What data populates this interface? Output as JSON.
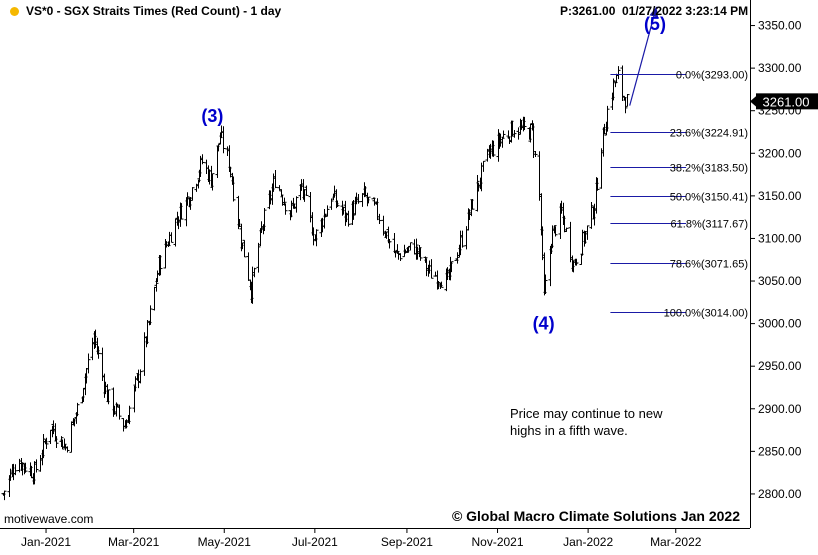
{
  "header": {
    "symbol_title": "VS*0 - SGX Straits Times (Red Count) - 1 day",
    "price_readout": "P:3261.00",
    "timestamp": "01/27/2022 3:23:14 PM",
    "status_dot_color": "#f5b800"
  },
  "watermark": "motivewave.com",
  "copyright": "© Global Macro Climate Solutions Jan 2022",
  "annotation": {
    "line1": "Price may continue to new",
    "line2": "highs in a fifth wave."
  },
  "current_price_badge": "3261.00",
  "colors": {
    "bars": "#000000",
    "wave_labels": "#0000cc",
    "fib_lines": "#1a1aa6",
    "arrow": "#1a1aa6",
    "badge_bg": "#000000",
    "badge_text": "#ffffff"
  },
  "chart_data": {
    "type": "ohlc",
    "ylim": [
      2760,
      3380
    ],
    "y_ticks": [
      2800,
      2850,
      2900,
      2950,
      3000,
      3050,
      3100,
      3150,
      3200,
      3250,
      3300,
      3350
    ],
    "y_tick_labels": [
      "2800.00",
      "2850.00",
      "2900.00",
      "2950.00",
      "3000.00",
      "3050.00",
      "3100.00",
      "3150.00",
      "3200.00",
      "3250.00",
      "3300.00",
      "3350.00"
    ],
    "x_tick_labels": [
      "Jan-2021",
      "Mar-2021",
      "May-2021",
      "Jul-2021",
      "Sep-2021",
      "Nov-2021",
      "Jan-2022",
      "Mar-2022"
    ],
    "x_tick_dates": [
      "2021-01-01",
      "2021-03-01",
      "2021-05-01",
      "2021-07-01",
      "2021-09-01",
      "2021-11-01",
      "2022-01-01",
      "2022-03-01"
    ],
    "x_range": [
      "2020-12-01",
      "2022-04-20"
    ],
    "price_path": [
      [
        "2020-12-03",
        2800
      ],
      [
        "2020-12-12",
        2840
      ],
      [
        "2020-12-24",
        2825
      ],
      [
        "2021-01-04",
        2880
      ],
      [
        "2021-01-14",
        2855
      ],
      [
        "2021-01-22",
        2900
      ],
      [
        "2021-02-02",
        2985
      ],
      [
        "2021-02-11",
        2915
      ],
      [
        "2021-02-23",
        2880
      ],
      [
        "2021-03-04",
        2940
      ],
      [
        "2021-03-11",
        3000
      ],
      [
        "2021-03-18",
        3070
      ],
      [
        "2021-03-29",
        3120
      ],
      [
        "2021-04-07",
        3150
      ],
      [
        "2021-04-16",
        3190
      ],
      [
        "2021-04-22",
        3170
      ],
      [
        "2021-04-28",
        3220
      ],
      [
        "2021-05-04",
        3190
      ],
      [
        "2021-05-12",
        3100
      ],
      [
        "2021-05-19",
        3040
      ],
      [
        "2021-05-26",
        3110
      ],
      [
        "2021-06-04",
        3170
      ],
      [
        "2021-06-14",
        3130
      ],
      [
        "2021-06-22",
        3160
      ],
      [
        "2021-07-01",
        3100
      ],
      [
        "2021-07-12",
        3150
      ],
      [
        "2021-07-22",
        3125
      ],
      [
        "2021-08-03",
        3150
      ],
      [
        "2021-08-12",
        3130
      ],
      [
        "2021-08-24",
        3080
      ],
      [
        "2021-09-06",
        3090
      ],
      [
        "2021-09-16",
        3060
      ],
      [
        "2021-09-28",
        3050
      ],
      [
        "2021-10-08",
        3100
      ],
      [
        "2021-10-18",
        3160
      ],
      [
        "2021-10-26",
        3200
      ],
      [
        "2021-11-05",
        3220
      ],
      [
        "2021-11-12",
        3230
      ],
      [
        "2021-11-24",
        3225
      ],
      [
        "2021-11-29",
        3150
      ],
      [
        "2021-12-02",
        3030
      ],
      [
        "2021-12-07",
        3100
      ],
      [
        "2021-12-14",
        3130
      ],
      [
        "2021-12-22",
        3070
      ],
      [
        "2021-12-31",
        3110
      ],
      [
        "2022-01-05",
        3140
      ],
      [
        "2022-01-10",
        3210
      ],
      [
        "2022-01-14",
        3250
      ],
      [
        "2022-01-18",
        3280
      ],
      [
        "2022-01-21",
        3290
      ],
      [
        "2022-01-24",
        3270
      ],
      [
        "2022-01-27",
        3261
      ]
    ],
    "fib_levels": [
      {
        "label": "0.0%(3293.00)",
        "value": 3293.0
      },
      {
        "label": "23.6%(3224.91)",
        "value": 3224.91
      },
      {
        "label": "38.2%(3183.50)",
        "value": 3183.5
      },
      {
        "label": "50.0%(3150.41)",
        "value": 3150.41
      },
      {
        "label": "61.8%(3117.67)",
        "value": 3117.67
      },
      {
        "label": "78.6%(3071.65)",
        "value": 3071.65
      },
      {
        "label": "100.0%(3014.00)",
        "value": 3014.0
      }
    ],
    "fib_x_range": [
      "2022-01-16",
      "2022-03-08"
    ],
    "wave_labels": [
      {
        "text": "(3)",
        "date": "2021-04-23",
        "price": 3237
      },
      {
        "text": "(4)",
        "date": "2021-12-02",
        "price": 2993
      },
      {
        "text": "(5)",
        "date": "2022-02-15",
        "price": 3345
      }
    ],
    "projection_arrow": {
      "from": [
        "2022-01-29",
        3256
      ],
      "to": [
        "2022-02-16",
        3372
      ]
    },
    "current_price": 3261.0
  }
}
